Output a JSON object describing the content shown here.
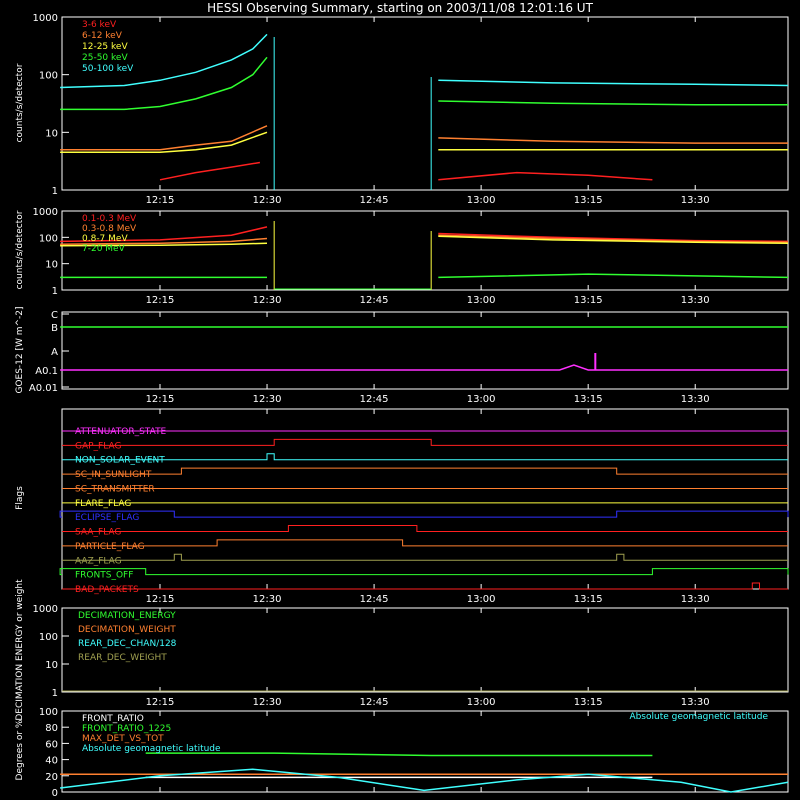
{
  "title": "HESSI Observing Summary, starting on 2003/11/08 12:01:16 UT",
  "time_ticks": [
    "12:15",
    "12:30",
    "12:45",
    "13:00",
    "13:15",
    "13:30"
  ],
  "colors": {
    "red": "#ff2020",
    "orange": "#ff8030",
    "yellow": "#ffff40",
    "green": "#30ff30",
    "cyan": "#40ffff",
    "magenta": "#ff30ff",
    "blue": "#3030ff",
    "olive": "#a0a050",
    "white": "#ffffff"
  },
  "chart_data": [
    {
      "type": "line",
      "ylabel": "counts/s/detector",
      "ylog": true,
      "ylim": [
        1,
        1000
      ],
      "yticks": [
        "1",
        "10",
        "100",
        "1000"
      ],
      "xlim": [
        "12:01:16",
        "13:43:00"
      ],
      "legend_placement": "top-left",
      "data_gap": [
        "12:31",
        "12:53"
      ],
      "series": [
        {
          "name": "3-6 keV",
          "color": "red",
          "points": [
            [
              "12:15",
              1.5
            ],
            [
              "12:20",
              2.0
            ],
            [
              "12:25",
              2.5
            ],
            [
              "12:29",
              3.0
            ],
            [
              "12:54",
              1.5
            ],
            [
              "13:05",
              2.0
            ],
            [
              "13:15",
              1.8
            ],
            [
              "13:24",
              1.5
            ]
          ]
        },
        {
          "name": "6-12 keV",
          "color": "orange",
          "points": [
            [
              "12:01",
              5.0
            ],
            [
              "12:15",
              5.0
            ],
            [
              "12:20",
              6.0
            ],
            [
              "12:25",
              7.0
            ],
            [
              "12:30",
              13.0
            ],
            [
              "12:54",
              8.0
            ],
            [
              "13:10",
              7.0
            ],
            [
              "13:30",
              6.5
            ],
            [
              "13:43",
              6.5
            ]
          ]
        },
        {
          "name": "12-25 keV",
          "color": "yellow",
          "points": [
            [
              "12:01",
              4.5
            ],
            [
              "12:15",
              4.5
            ],
            [
              "12:20",
              5.0
            ],
            [
              "12:25",
              6.0
            ],
            [
              "12:30",
              10.0
            ],
            [
              "12:54",
              5.0
            ],
            [
              "13:10",
              5.0
            ],
            [
              "13:30",
              5.0
            ],
            [
              "13:43",
              5.0
            ]
          ]
        },
        {
          "name": "25-50 keV",
          "color": "green",
          "points": [
            [
              "12:01",
              25
            ],
            [
              "12:10",
              25
            ],
            [
              "12:15",
              28
            ],
            [
              "12:20",
              38
            ],
            [
              "12:25",
              60
            ],
            [
              "12:28",
              100
            ],
            [
              "12:30",
              200
            ],
            [
              "12:54",
              35
            ],
            [
              "13:10",
              32
            ],
            [
              "13:30",
              30
            ],
            [
              "13:43",
              30
            ]
          ]
        },
        {
          "name": "50-100 keV",
          "color": "cyan",
          "points": [
            [
              "12:01",
              60
            ],
            [
              "12:10",
              65
            ],
            [
              "12:15",
              80
            ],
            [
              "12:20",
              110
            ],
            [
              "12:25",
              180
            ],
            [
              "12:28",
              280
            ],
            [
              "12:30",
              500
            ],
            [
              "12:54",
              80
            ],
            [
              "13:10",
              72
            ],
            [
              "13:30",
              68
            ],
            [
              "13:43",
              65
            ]
          ]
        }
      ]
    },
    {
      "type": "line",
      "ylabel": "counts/s/detector",
      "ylog": true,
      "ylim": [
        1,
        1000
      ],
      "yticks": [
        "1",
        "10",
        "100",
        "1000"
      ],
      "legend_placement": "top-left",
      "data_gap": [
        "12:31",
        "12:53"
      ],
      "series": [
        {
          "name": "0.1-0.3 MeV",
          "color": "red",
          "points": [
            [
              "12:01",
              70
            ],
            [
              "12:15",
              80
            ],
            [
              "12:25",
              120
            ],
            [
              "12:30",
              250
            ],
            [
              "12:54",
              140
            ],
            [
              "13:10",
              100
            ],
            [
              "13:30",
              75
            ],
            [
              "13:43",
              70
            ]
          ]
        },
        {
          "name": "0.3-0.8 MeV",
          "color": "orange",
          "points": [
            [
              "12:01",
              55
            ],
            [
              "12:15",
              60
            ],
            [
              "12:25",
              70
            ],
            [
              "12:30",
              90
            ],
            [
              "12:54",
              120
            ],
            [
              "13:10",
              90
            ],
            [
              "13:30",
              70
            ],
            [
              "13:43",
              65
            ]
          ]
        },
        {
          "name": "0.8-7 MeV",
          "color": "yellow",
          "points": [
            [
              "12:01",
              48
            ],
            [
              "12:15",
              50
            ],
            [
              "12:25",
              55
            ],
            [
              "12:30",
              60
            ],
            [
              "12:54",
              110
            ],
            [
              "13:10",
              80
            ],
            [
              "13:30",
              65
            ],
            [
              "13:43",
              60
            ]
          ]
        },
        {
          "name": "7-20 MeV",
          "color": "green",
          "points": [
            [
              "12:01",
              3
            ],
            [
              "12:30",
              3
            ],
            [
              "12:54",
              3
            ],
            [
              "13:15",
              4
            ],
            [
              "13:43",
              3
            ]
          ]
        }
      ]
    },
    {
      "type": "line",
      "ylabel": "GOES-12 [W m^-2]",
      "ylog": true,
      "yticks": [
        "A0.01",
        "A0.1",
        "A",
        "B",
        "C"
      ],
      "series": [
        {
          "name": "",
          "color": "green",
          "points": [
            [
              "12:01",
              "B"
            ],
            [
              "13:43",
              "B"
            ]
          ]
        },
        {
          "name": "",
          "color": "magenta",
          "points": [
            [
              "12:01",
              "A0.1"
            ],
            [
              "13:11",
              "A0.1"
            ],
            [
              "13:13",
              "A0.1+"
            ],
            [
              "13:15",
              "A0.1"
            ],
            [
              "13:43",
              "A0.1"
            ]
          ]
        }
      ]
    },
    {
      "type": "flags",
      "ylabel": "Flags",
      "flags": [
        {
          "name": "ATTENUATOR_STATE",
          "color": "magenta",
          "on": []
        },
        {
          "name": "GAP_FLAG",
          "color": "red",
          "on": [
            [
              "12:31",
              "12:53"
            ]
          ]
        },
        {
          "name": "NON_SOLAR_EVENT",
          "color": "cyan",
          "on": [
            [
              "12:30",
              "12:31"
            ]
          ]
        },
        {
          "name": "SC_IN_SUNLIGHT",
          "color": "orange",
          "on": [
            [
              "12:18",
              "13:19"
            ]
          ]
        },
        {
          "name": "SC_TRANSMITTER",
          "color": "orange",
          "on": []
        },
        {
          "name": "FLARE_FLAG",
          "color": "yellow",
          "on": []
        },
        {
          "name": "ECLIPSE_FLAG",
          "color": "blue",
          "on": [
            [
              "12:01",
              "12:17"
            ],
            [
              "13:19",
              "13:43"
            ]
          ]
        },
        {
          "name": "SAA_FLAG",
          "color": "red",
          "on": [
            [
              "12:33",
              "12:51"
            ]
          ]
        },
        {
          "name": "PARTICLE_FLAG",
          "color": "orange",
          "on": [
            [
              "12:23",
              "12:49"
            ]
          ]
        },
        {
          "name": "AAZ_FLAG",
          "color": "olive",
          "on": [
            [
              "12:17",
              "12:18"
            ],
            [
              "13:19",
              "13:20"
            ]
          ]
        },
        {
          "name": "FRONTS_OFF",
          "color": "green",
          "on": [
            [
              "12:01",
              "12:13"
            ],
            [
              "13:24",
              "13:43"
            ]
          ]
        },
        {
          "name": "BAD_PACKETS",
          "color": "red",
          "on": [
            [
              "13:38",
              "13:39"
            ]
          ]
        }
      ]
    },
    {
      "type": "line",
      "ylabel": "DECIMATION ENERGY or weight",
      "ylog": true,
      "ylim": [
        1,
        1000
      ],
      "yticks": [
        "1",
        "10",
        "100",
        "1000"
      ],
      "legend_placement": "top-left",
      "series": [
        {
          "name": "DECIMATION_ENERGY",
          "color": "green",
          "points": []
        },
        {
          "name": "DECIMATION_WEIGHT",
          "color": "orange",
          "points": []
        },
        {
          "name": "REAR_DEC_CHAN/128",
          "color": "cyan",
          "points": []
        },
        {
          "name": "REAR_DEC_WEIGHT",
          "color": "olive",
          "points": []
        }
      ]
    },
    {
      "type": "line",
      "ylabel": "Degrees or %",
      "ylim": [
        0,
        100
      ],
      "yticks": [
        "0",
        "20",
        "40",
        "60",
        "80",
        "100"
      ],
      "legend_placement": "top-left",
      "annotation": "Absolute geomagnetic latitude",
      "series": [
        {
          "name": "FRONT_RATIO",
          "color": "white",
          "points": [
            [
              "12:13",
              18
            ],
            [
              "12:31",
              18
            ],
            [
              "12:53",
              18
            ],
            [
              "13:24",
              18
            ]
          ]
        },
        {
          "name": "FRONT_RATIO_1225",
          "color": "green",
          "points": [
            [
              "12:13",
              48
            ],
            [
              "12:31",
              48
            ],
            [
              "12:53",
              45
            ],
            [
              "13:24",
              45
            ]
          ]
        },
        {
          "name": "MAX_DET_VS_TOT",
          "color": "orange",
          "points": [
            [
              "12:01",
              22
            ],
            [
              "12:31",
              22
            ],
            [
              "12:53",
              22
            ],
            [
              "13:43",
              22
            ]
          ]
        },
        {
          "name": "Absolute geomagnetic latitude",
          "color": "cyan",
          "points": [
            [
              "12:01",
              5
            ],
            [
              "12:15",
              20
            ],
            [
              "12:28",
              28
            ],
            [
              "12:40",
              18
            ],
            [
              "12:52",
              2
            ],
            [
              "13:05",
              15
            ],
            [
              "13:15",
              22
            ],
            [
              "13:28",
              12
            ],
            [
              "13:35",
              0
            ],
            [
              "13:43",
              12
            ]
          ]
        }
      ]
    }
  ]
}
